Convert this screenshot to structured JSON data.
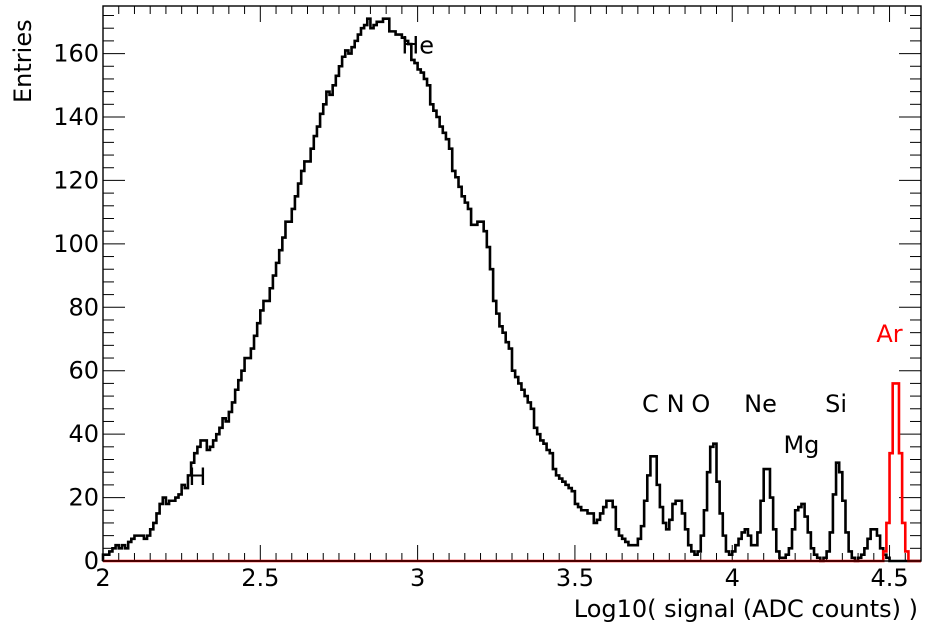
{
  "chart_data": {
    "type": "histogram-step",
    "title": "",
    "xlabel": "Log10( signal (ADC counts) )",
    "ylabel": "Entries",
    "xlim": [
      2.0,
      4.6
    ],
    "ylim": [
      0,
      175
    ],
    "x_ticks": [
      2,
      2.5,
      3,
      3.5,
      4,
      4.5
    ],
    "x_tick_labels": [
      "2",
      "2.5",
      "3",
      "3.5",
      "4",
      "4.5"
    ],
    "y_ticks": [
      0,
      20,
      40,
      60,
      80,
      100,
      120,
      140,
      160
    ],
    "y_tick_labels": [
      "0",
      "20",
      "40",
      "60",
      "80",
      "100",
      "120",
      "140",
      "160"
    ],
    "bin_width": 0.01,
    "series": [
      {
        "color": "#000000",
        "peaks": [
          [
            2.04,
            0.45,
            1
          ],
          [
            2.1,
            0.6,
            2
          ],
          [
            2.2,
            1.2,
            6
          ],
          [
            2.3,
            1.4,
            9
          ],
          [
            2.88,
            15.0,
            170
          ],
          [
            3.21,
            1.0,
            13
          ],
          [
            3.61,
            1.0,
            10
          ],
          [
            3.75,
            1.1,
            30
          ],
          [
            3.83,
            1.0,
            20
          ],
          [
            3.94,
            1.0,
            36
          ],
          [
            4.04,
            1.0,
            10
          ],
          [
            4.11,
            0.8,
            31
          ],
          [
            4.22,
            1.0,
            20
          ],
          [
            4.34,
            0.8,
            31
          ],
          [
            4.45,
            1.0,
            10
          ]
        ]
      },
      {
        "color": "#ff0000",
        "peaks": [
          [
            4.52,
            0.7,
            60
          ]
        ]
      }
    ],
    "annotations": [
      {
        "text": "H",
        "x": 2.3,
        "y": 24,
        "color": "#000000"
      },
      {
        "text": "He",
        "x": 3.0,
        "y": 160,
        "color": "#000000"
      },
      {
        "text": "C",
        "x": 3.74,
        "y": 47,
        "color": "#000000"
      },
      {
        "text": "N",
        "x": 3.82,
        "y": 47,
        "color": "#000000"
      },
      {
        "text": "O",
        "x": 3.9,
        "y": 47,
        "color": "#000000"
      },
      {
        "text": "Ne",
        "x": 4.09,
        "y": 47,
        "color": "#000000"
      },
      {
        "text": "Mg",
        "x": 4.22,
        "y": 34,
        "color": "#000000"
      },
      {
        "text": "Si",
        "x": 4.33,
        "y": 47,
        "color": "#000000"
      },
      {
        "text": "Ar",
        "x": 4.5,
        "y": 69,
        "color": "#ff0000"
      }
    ],
    "grid": false,
    "legend": "none"
  }
}
